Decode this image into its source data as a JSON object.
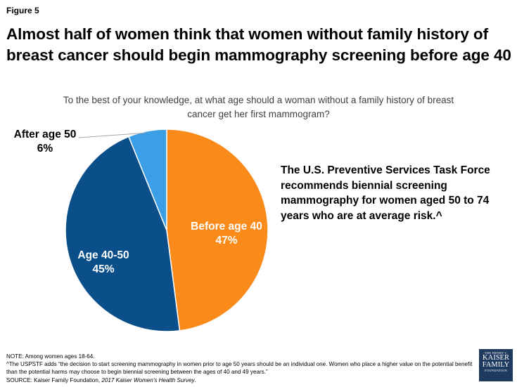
{
  "figure_label": "Figure 5",
  "title": "Almost half of women think that women without family history of breast cancer should begin mammography screening before age 40",
  "question": "To the best of your knowledge, at what age should a woman without a family history of breast cancer get her first mammogram?",
  "callout": "The U.S. Preventive Services Task Force recommends biennial screening mammography for women aged 50 to 74 years who are at average risk.^",
  "chart_data": {
    "type": "pie",
    "title": "To the best of your knowledge, at what age should a woman without a family history of breast cancer get her first mammogram?",
    "slices": [
      {
        "label": "Before age 40",
        "value": 47,
        "value_label": "47%",
        "color": "#fa8b1b",
        "text_color": "#ffffff"
      },
      {
        "label": "Age 40-50",
        "value": 45,
        "value_label": "45%",
        "color": "#0b4f8a",
        "text_color": "#ffffff"
      },
      {
        "label": "After age 50",
        "value": 6,
        "value_label": "6%",
        "color": "#3a9fe6",
        "text_color": "#000000"
      }
    ]
  },
  "notes": {
    "note": "NOTE:  Among women ages 18-64.",
    "footnote": "^The  USPSTF adds “the decision to start screening mammography in women  prior to age 50 years should be an individual one. Women who place a higher value on the potential benefit than the potential harms may choose to begin biennial screening between  the ages of 40 and 49 years.”",
    "source_prefix": "SOURCE:  Kaiser Family Foundation, ",
    "source_title": "2017 Kaiser Women’s Health Survey",
    "source_suffix": "."
  },
  "logo": {
    "line1": "THE HENRY J.",
    "line2": "KAISER",
    "line3": "FAMILY",
    "line4": "FOUNDATION"
  }
}
